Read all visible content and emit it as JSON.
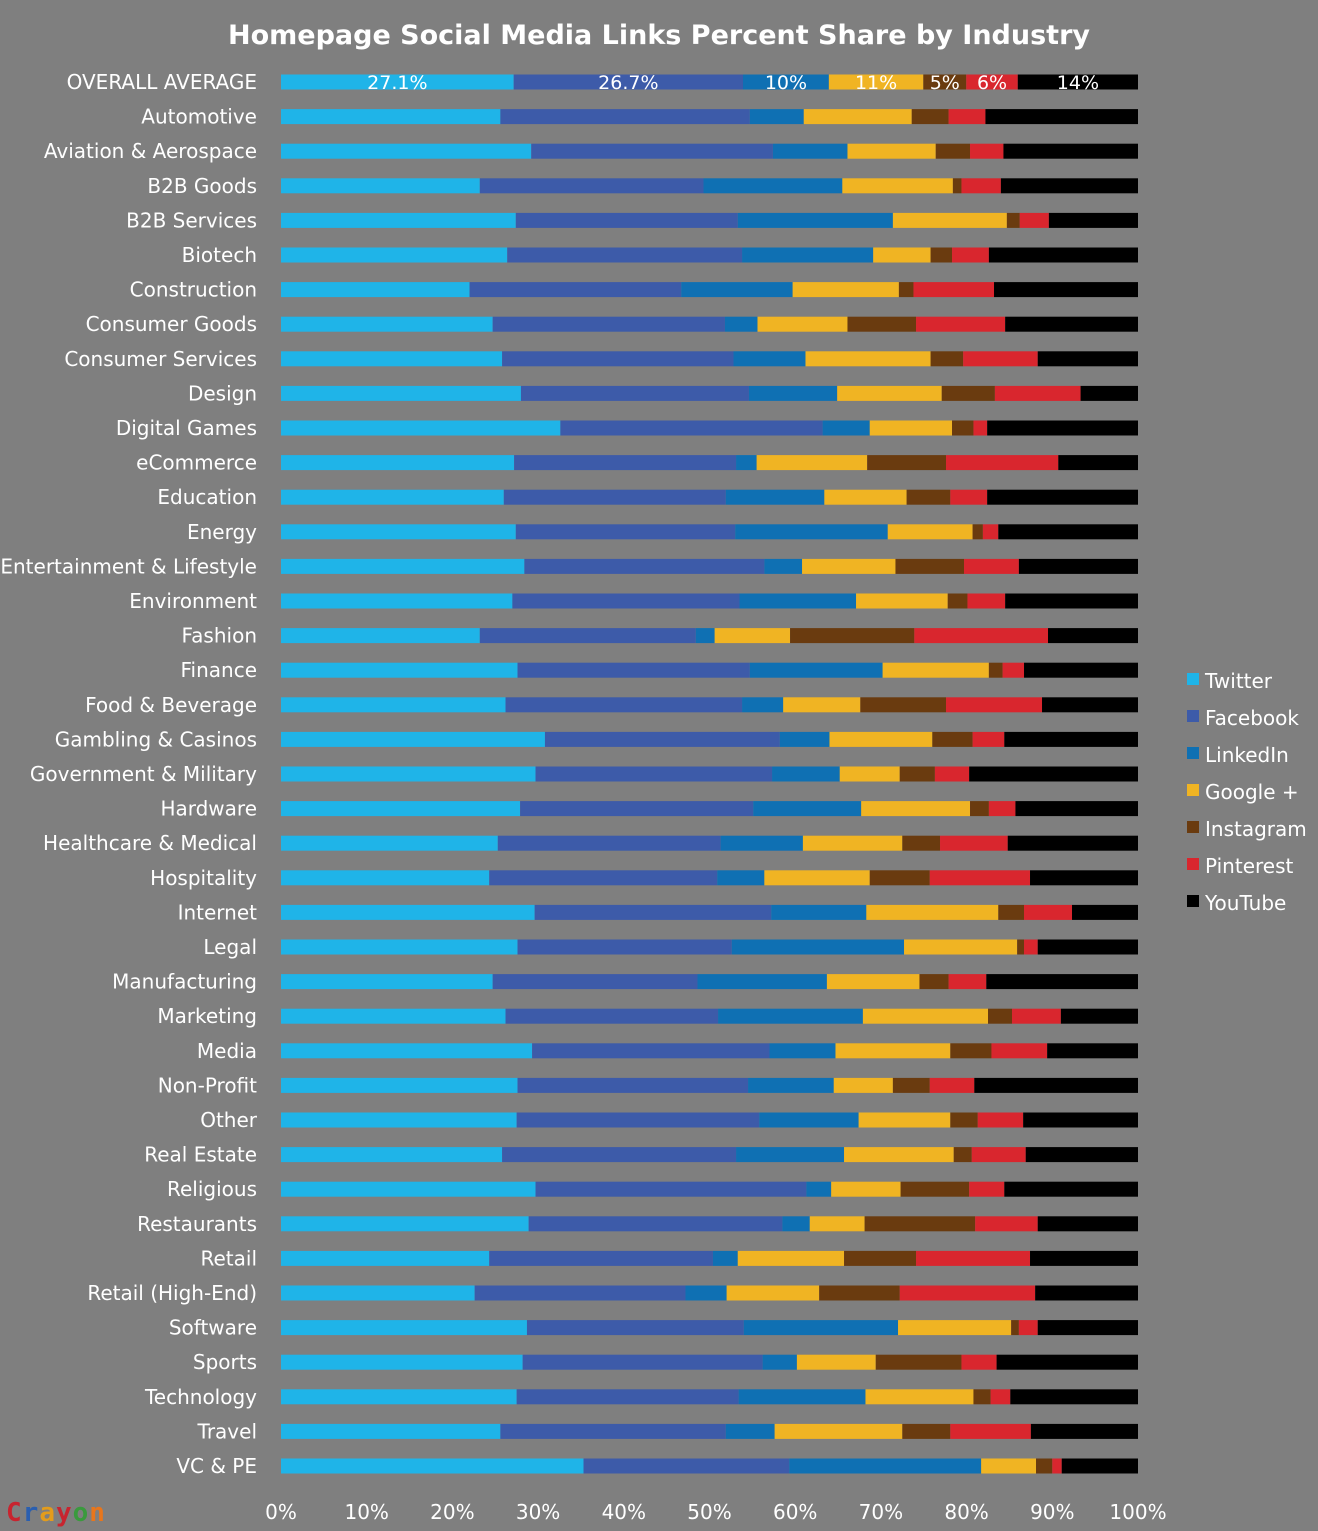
{
  "chart_data": {
    "type": "bar",
    "orientation": "horizontal",
    "stacked": "percent",
    "title": "Homepage Social Media Links Percent Share by Industry",
    "xlabel": "",
    "ylabel": "",
    "xlim": [
      0,
      100
    ],
    "x_ticks": [
      "0%",
      "10%",
      "20%",
      "30%",
      "40%",
      "50%",
      "60%",
      "70%",
      "80%",
      "90%",
      "100%"
    ],
    "grid": false,
    "legend_position": "right",
    "categories": [
      "OVERALL AVERAGE",
      "Automotive",
      "Aviation & Aerospace",
      "B2B Goods",
      "B2B Services",
      "Biotech",
      "Construction",
      "Consumer Goods",
      "Consumer Services",
      "Design",
      "Digital Games",
      "eCommerce",
      "Education",
      "Energy",
      "Entertainment & Lifestyle",
      "Environment",
      "Fashion",
      "Finance",
      "Food & Beverage",
      "Gambling & Casinos",
      "Government & Military",
      "Hardware",
      "Healthcare & Medical",
      "Hospitality",
      "Internet",
      "Legal",
      "Manufacturing",
      "Marketing",
      "Media",
      "Non-Profit",
      "Other",
      "Real Estate",
      "Religious",
      "Restaurants",
      "Retail",
      "Retail (High-End)",
      "Software",
      "Sports",
      "Technology",
      "Travel",
      "VC & PE"
    ],
    "series": [
      {
        "name": "Twitter",
        "color": "#1fb4e8",
        "values": [
          27.1,
          25.6,
          29.2,
          23.2,
          27.4,
          26.4,
          22.0,
          24.7,
          25.8,
          28.0,
          32.6,
          27.2,
          26.0,
          27.4,
          28.4,
          27.0,
          23.2,
          27.6,
          26.2,
          30.8,
          29.7,
          27.9,
          25.3,
          24.3,
          29.6,
          27.6,
          24.7,
          26.2,
          29.3,
          27.6,
          27.5,
          25.8,
          29.7,
          28.9,
          24.3,
          22.6,
          28.7,
          28.2,
          27.5,
          25.6,
          35.3
        ]
      },
      {
        "name": "Facebook",
        "color": "#3d5ba9",
        "values": [
          26.7,
          29.1,
          28.2,
          26.1,
          25.9,
          27.4,
          24.7,
          27.1,
          27.0,
          26.6,
          30.6,
          25.9,
          25.9,
          25.6,
          28.0,
          26.5,
          25.2,
          27.1,
          27.6,
          27.4,
          27.6,
          27.2,
          26.0,
          26.6,
          27.6,
          25.0,
          23.9,
          24.8,
          27.7,
          26.9,
          28.3,
          27.3,
          31.6,
          29.6,
          26.1,
          24.6,
          25.3,
          28.0,
          25.9,
          26.3,
          24.0
        ]
      },
      {
        "name": "LinkedIn",
        "color": "#0f70b3",
        "values": [
          10.0,
          6.3,
          8.7,
          16.2,
          18.1,
          15.3,
          13.0,
          3.8,
          8.4,
          10.3,
          5.5,
          2.4,
          11.5,
          17.8,
          4.4,
          13.6,
          2.2,
          15.5,
          4.8,
          5.8,
          7.9,
          12.6,
          9.6,
          5.5,
          11.1,
          20.1,
          15.1,
          16.9,
          7.7,
          10.0,
          11.6,
          12.6,
          2.9,
          3.2,
          2.9,
          4.8,
          18.0,
          4.0,
          14.8,
          5.7,
          22.4
        ]
      },
      {
        "name": "Google +",
        "color": "#f0b423",
        "values": [
          11.0,
          12.6,
          10.3,
          12.9,
          13.3,
          6.7,
          12.4,
          10.5,
          14.6,
          12.2,
          9.6,
          12.9,
          9.6,
          9.9,
          10.9,
          10.7,
          8.8,
          12.4,
          9.0,
          12.0,
          7.0,
          12.7,
          11.6,
          12.3,
          15.4,
          13.2,
          10.8,
          14.6,
          13.4,
          6.9,
          10.7,
          12.8,
          8.1,
          6.4,
          12.4,
          10.8,
          13.2,
          9.2,
          12.6,
          14.9,
          6.4
        ]
      },
      {
        "name": "Instagram",
        "color": "#6a3b0f",
        "values": [
          5.0,
          4.3,
          4.0,
          1.0,
          1.5,
          2.5,
          1.7,
          8.0,
          3.8,
          6.2,
          2.5,
          9.2,
          5.1,
          1.2,
          8.0,
          2.3,
          14.5,
          1.6,
          10.0,
          4.7,
          4.1,
          2.2,
          4.4,
          7.0,
          3.0,
          0.8,
          3.4,
          2.8,
          4.8,
          4.3,
          3.2,
          2.1,
          8.0,
          12.9,
          8.4,
          9.4,
          0.9,
          10.0,
          2.0,
          5.6,
          1.9
        ]
      },
      {
        "name": "Pinterest",
        "color": "#d9262e",
        "values": [
          6.0,
          4.3,
          3.9,
          4.6,
          3.4,
          4.3,
          9.4,
          10.4,
          8.7,
          10.0,
          1.6,
          13.1,
          4.3,
          1.8,
          6.4,
          4.4,
          15.6,
          2.5,
          11.2,
          3.7,
          4.0,
          3.1,
          7.9,
          11.7,
          5.6,
          1.6,
          4.4,
          5.7,
          6.5,
          5.2,
          5.3,
          6.3,
          4.1,
          7.3,
          13.3,
          15.8,
          2.2,
          4.1,
          2.3,
          9.4,
          1.1
        ]
      },
      {
        "name": "YouTube",
        "color": "#000000",
        "values": [
          14.0,
          17.8,
          15.7,
          16.0,
          10.4,
          17.4,
          16.8,
          15.5,
          11.7,
          6.7,
          17.6,
          9.3,
          17.6,
          16.3,
          13.9,
          15.5,
          10.5,
          13.3,
          11.2,
          15.6,
          19.7,
          14.3,
          15.2,
          12.6,
          7.7,
          11.7,
          17.7,
          9.0,
          10.6,
          19.1,
          13.4,
          13.1,
          15.6,
          11.7,
          12.6,
          12.0,
          11.7,
          16.5,
          14.9,
          12.5,
          8.9
        ]
      }
    ],
    "overall_data_labels": [
      "27.1%",
      "26.7%",
      "10%",
      "11%",
      "5%",
      "6%",
      "14%"
    ]
  },
  "logo_text": "Crayon"
}
